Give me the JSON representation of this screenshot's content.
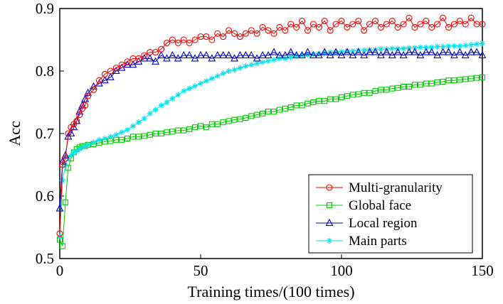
{
  "chart_data": {
    "type": "line",
    "title": "",
    "xlabel": "Training times/(100 times)",
    "ylabel": "Acc",
    "xlim": [
      0,
      150
    ],
    "ylim": [
      0.5,
      0.9
    ],
    "x_ticks": [
      0,
      50,
      100,
      150
    ],
    "y_ticks": [
      0.5,
      0.6,
      0.7,
      0.8,
      0.9
    ],
    "x_tick_labels": [
      "0",
      "50",
      "100",
      "150"
    ],
    "y_tick_labels": [
      "0.5",
      "0.6",
      "0.7",
      "0.8",
      "0.9"
    ],
    "grid": false,
    "legend_position": "bottom-right",
    "x": [
      0,
      1,
      2,
      3,
      4,
      5,
      6,
      7,
      8,
      9,
      10,
      12,
      14,
      16,
      18,
      20,
      22,
      24,
      26,
      28,
      30,
      32,
      34,
      36,
      38,
      40,
      42,
      44,
      46,
      48,
      50,
      52,
      54,
      56,
      58,
      60,
      62,
      64,
      66,
      68,
      70,
      72,
      74,
      76,
      78,
      80,
      82,
      84,
      86,
      88,
      90,
      92,
      94,
      96,
      98,
      100,
      102,
      104,
      106,
      108,
      110,
      112,
      114,
      116,
      118,
      120,
      122,
      124,
      126,
      128,
      130,
      132,
      134,
      136,
      138,
      140,
      142,
      144,
      146,
      148,
      150
    ],
    "series": [
      {
        "name": "Multi-granularity",
        "color": "#ff0000",
        "marker": "circle",
        "values": [
          0.54,
          0.65,
          0.66,
          0.7,
          0.71,
          0.715,
          0.72,
          0.73,
          0.74,
          0.745,
          0.76,
          0.77,
          0.785,
          0.795,
          0.8,
          0.805,
          0.81,
          0.815,
          0.82,
          0.82,
          0.825,
          0.83,
          0.83,
          0.835,
          0.845,
          0.85,
          0.845,
          0.85,
          0.845,
          0.85,
          0.855,
          0.855,
          0.85,
          0.86,
          0.855,
          0.865,
          0.86,
          0.855,
          0.86,
          0.865,
          0.86,
          0.87,
          0.865,
          0.86,
          0.87,
          0.865,
          0.875,
          0.87,
          0.88,
          0.865,
          0.875,
          0.87,
          0.88,
          0.865,
          0.875,
          0.88,
          0.87,
          0.875,
          0.88,
          0.865,
          0.875,
          0.88,
          0.87,
          0.875,
          0.88,
          0.87,
          0.875,
          0.885,
          0.87,
          0.875,
          0.88,
          0.87,
          0.875,
          0.885,
          0.87,
          0.875,
          0.88,
          0.875,
          0.885,
          0.875,
          0.875
        ]
      },
      {
        "name": "Global face",
        "color": "#00cc00",
        "marker": "square",
        "values": [
          0.53,
          0.52,
          0.59,
          0.645,
          0.66,
          0.67,
          0.675,
          0.678,
          0.68,
          0.68,
          0.682,
          0.683,
          0.685,
          0.687,
          0.688,
          0.69,
          0.69,
          0.692,
          0.695,
          0.695,
          0.696,
          0.698,
          0.7,
          0.7,
          0.702,
          0.703,
          0.705,
          0.705,
          0.707,
          0.71,
          0.712,
          0.71,
          0.715,
          0.715,
          0.718,
          0.72,
          0.722,
          0.723,
          0.725,
          0.728,
          0.73,
          0.732,
          0.735,
          0.735,
          0.738,
          0.74,
          0.742,
          0.745,
          0.745,
          0.748,
          0.75,
          0.752,
          0.752,
          0.755,
          0.755,
          0.758,
          0.76,
          0.762,
          0.763,
          0.765,
          0.765,
          0.768,
          0.77,
          0.77,
          0.772,
          0.773,
          0.775,
          0.775,
          0.778,
          0.778,
          0.78,
          0.78,
          0.782,
          0.783,
          0.785,
          0.785,
          0.786,
          0.787,
          0.788,
          0.789,
          0.79
        ]
      },
      {
        "name": "Local region",
        "color": "#0000cc",
        "marker": "triangle",
        "values": [
          0.58,
          0.655,
          0.665,
          0.695,
          0.7,
          0.71,
          0.72,
          0.735,
          0.745,
          0.755,
          0.765,
          0.775,
          0.78,
          0.785,
          0.79,
          0.8,
          0.805,
          0.81,
          0.81,
          0.815,
          0.82,
          0.82,
          0.815,
          0.825,
          0.82,
          0.825,
          0.82,
          0.825,
          0.825,
          0.82,
          0.825,
          0.825,
          0.82,
          0.825,
          0.825,
          0.825,
          0.82,
          0.825,
          0.825,
          0.825,
          0.82,
          0.825,
          0.825,
          0.83,
          0.825,
          0.825,
          0.83,
          0.825,
          0.825,
          0.83,
          0.825,
          0.825,
          0.83,
          0.825,
          0.83,
          0.825,
          0.83,
          0.825,
          0.83,
          0.825,
          0.83,
          0.83,
          0.825,
          0.83,
          0.825,
          0.83,
          0.825,
          0.83,
          0.83,
          0.825,
          0.83,
          0.83,
          0.825,
          0.83,
          0.83,
          0.825,
          0.83,
          0.825,
          0.83,
          0.83,
          0.825
        ]
      },
      {
        "name": "Main parts",
        "color": "#00e5ee",
        "marker": "star",
        "values": [
          0.535,
          0.625,
          0.65,
          0.66,
          0.665,
          0.67,
          0.672,
          0.675,
          0.678,
          0.68,
          0.682,
          0.686,
          0.69,
          0.692,
          0.695,
          0.698,
          0.702,
          0.706,
          0.712,
          0.718,
          0.724,
          0.732,
          0.738,
          0.745,
          0.75,
          0.756,
          0.762,
          0.768,
          0.772,
          0.776,
          0.78,
          0.784,
          0.788,
          0.792,
          0.796,
          0.8,
          0.802,
          0.805,
          0.808,
          0.81,
          0.812,
          0.814,
          0.816,
          0.818,
          0.82,
          0.82,
          0.822,
          0.824,
          0.825,
          0.826,
          0.827,
          0.828,
          0.829,
          0.83,
          0.83,
          0.831,
          0.832,
          0.832,
          0.833,
          0.833,
          0.834,
          0.834,
          0.835,
          0.835,
          0.836,
          0.836,
          0.836,
          0.837,
          0.837,
          0.838,
          0.838,
          0.838,
          0.839,
          0.839,
          0.84,
          0.84,
          0.84,
          0.841,
          0.842,
          0.843,
          0.844
        ]
      }
    ]
  }
}
